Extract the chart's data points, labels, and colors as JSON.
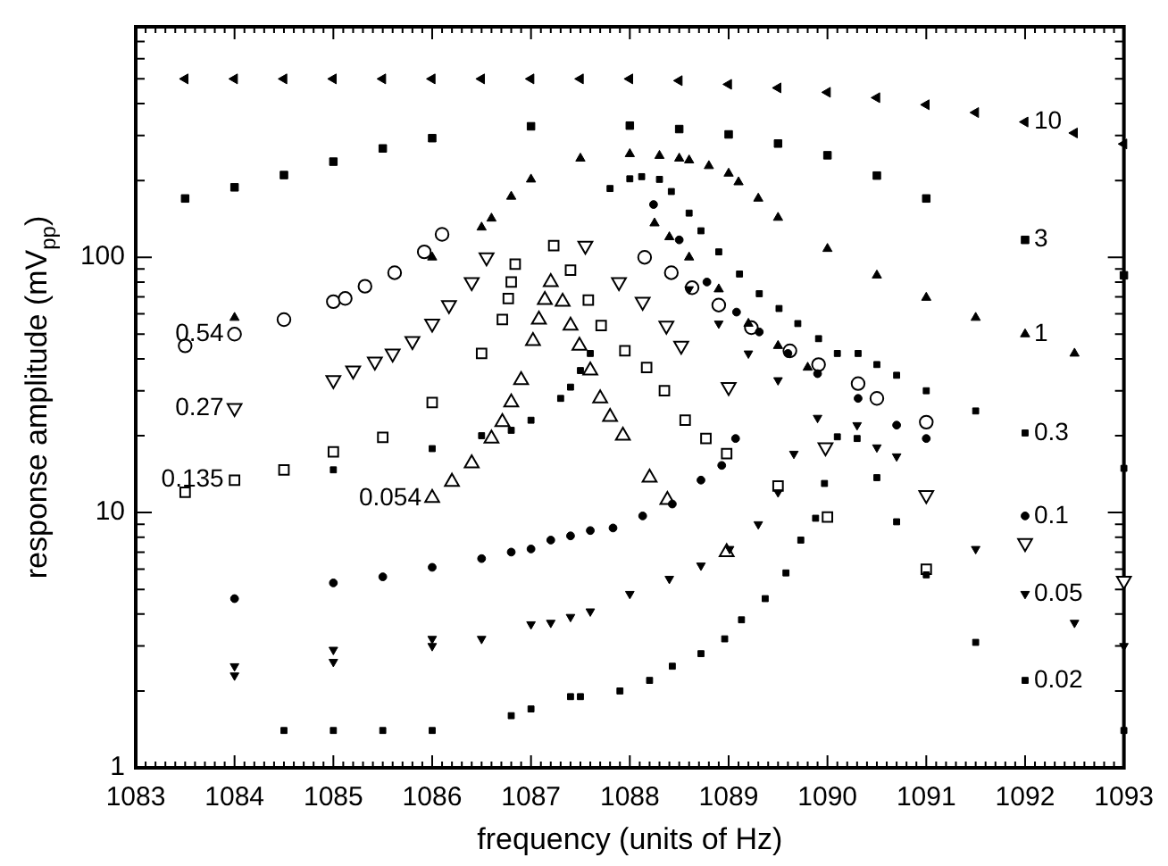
{
  "chart_data": {
    "type": "scatter",
    "xlabel": "frequency (units of Hz)",
    "ylabel": "response amplitude (mV$_{pp}$)",
    "log": "y",
    "xlim": [
      1083,
      1093
    ],
    "xticks": [
      1083,
      {
        "value": 1083.1,
        "label": null
      },
      {
        "value": 1083.2,
        "label": null
      },
      {
        "value": 1083.3,
        "label": null
      },
      {
        "value": 1083.4,
        "label": null
      },
      {
        "value": 1083.5,
        "label": null
      },
      {
        "value": 1083.6,
        "label": null
      },
      {
        "value": 1083.7,
        "label": null
      },
      {
        "value": 1083.8,
        "label": null
      },
      {
        "value": 1083.9,
        "label": null
      },
      1084,
      {
        "value": 1084.1,
        "label": null
      },
      {
        "value": 1084.2,
        "label": null
      },
      {
        "value": 1084.3,
        "label": null
      },
      {
        "value": 1084.4,
        "label": null
      },
      {
        "value": 1084.5,
        "label": null
      },
      {
        "value": 1084.6,
        "label": null
      },
      {
        "value": 1084.7,
        "label": null
      },
      {
        "value": 1084.8,
        "label": null
      },
      {
        "value": 1084.9,
        "label": null
      },
      1085,
      {
        "value": 1085.1,
        "label": null
      },
      {
        "value": 1085.2,
        "label": null
      },
      {
        "value": 1085.3,
        "label": null
      },
      {
        "value": 1085.4,
        "label": null
      },
      {
        "value": 1085.5,
        "label": null
      },
      {
        "value": 1085.6,
        "label": null
      },
      {
        "value": 1085.7,
        "label": null
      },
      {
        "value": 1085.8,
        "label": null
      },
      {
        "value": 1085.9,
        "label": null
      },
      1086,
      {
        "value": 1086.1,
        "label": null
      },
      {
        "value": 1086.2,
        "label": null
      },
      {
        "value": 1086.3,
        "label": null
      },
      {
        "value": 1086.4,
        "label": null
      },
      {
        "value": 1086.5,
        "label": null
      },
      {
        "value": 1086.6,
        "label": null
      },
      {
        "value": 1086.7,
        "label": null
      },
      {
        "value": 1086.8,
        "label": null
      },
      {
        "value": 1086.9,
        "label": null
      },
      1087,
      {
        "value": 1087.1,
        "label": null
      },
      {
        "value": 1087.2,
        "label": null
      },
      {
        "value": 1087.3,
        "label": null
      },
      {
        "value": 1087.4,
        "label": null
      },
      {
        "value": 1087.5,
        "label": null
      },
      {
        "value": 1087.6,
        "label": null
      },
      {
        "value": 1087.7,
        "label": null
      },
      {
        "value": 1087.8,
        "label": null
      },
      {
        "value": 1087.9,
        "label": null
      },
      1088,
      {
        "value": 1088.1,
        "label": null
      },
      {
        "value": 1088.2,
        "label": null
      },
      {
        "value": 1088.3,
        "label": null
      },
      {
        "value": 1088.4,
        "label": null
      },
      {
        "value": 1088.5,
        "label": null
      },
      {
        "value": 1088.6,
        "label": null
      },
      {
        "value": 1088.7,
        "label": null
      },
      {
        "value": 1088.8,
        "label": null
      },
      {
        "value": 1088.9,
        "label": null
      },
      1089,
      {
        "value": 1089.1,
        "label": null
      },
      {
        "value": 1089.2,
        "label": null
      },
      {
        "value": 1089.3,
        "label": null
      },
      {
        "value": 1089.4,
        "label": null
      },
      {
        "value": 1089.5,
        "label": null
      },
      {
        "value": 1089.6,
        "label": null
      },
      {
        "value": 1089.7,
        "label": null
      },
      {
        "value": 1089.8,
        "label": null
      },
      {
        "value": 1089.9,
        "label": null
      },
      1090,
      {
        "value": 1090.1,
        "label": null
      },
      {
        "value": 1090.2,
        "label": null
      },
      {
        "value": 1090.3,
        "label": null
      },
      {
        "value": 1090.4,
        "label": null
      },
      {
        "value": 1090.5,
        "label": null
      },
      {
        "value": 1090.6,
        "label": null
      },
      {
        "value": 1090.7,
        "label": null
      },
      {
        "value": 1090.8,
        "label": null
      },
      {
        "value": 1090.9,
        "label": null
      },
      1091,
      {
        "value": 1091.1,
        "label": null
      },
      {
        "value": 1091.2,
        "label": null
      },
      {
        "value": 1091.3,
        "label": null
      },
      {
        "value": 1091.4,
        "label": null
      },
      {
        "value": 1091.5,
        "label": null
      },
      {
        "value": 1091.6,
        "label": null
      },
      {
        "value": 1091.7,
        "label": null
      },
      {
        "value": 1091.8,
        "label": null
      },
      {
        "value": 1091.9,
        "label": null
      },
      1092,
      {
        "value": 1092.1,
        "label": null
      },
      {
        "value": 1092.2,
        "label": null
      },
      {
        "value": 1092.3,
        "label": null
      },
      {
        "value": 1092.4,
        "label": null
      },
      {
        "value": 1092.5,
        "label": null
      },
      {
        "value": 1092.6,
        "label": null
      },
      {
        "value": 1092.7,
        "label": null
      },
      {
        "value": 1092.8,
        "label": null
      },
      {
        "value": 1092.9,
        "label": null
      },
      1093
    ],
    "ylim": [
      1,
      800
    ],
    "yticks": [
      1,
      {
        "value": 2,
        "label": null
      },
      {
        "value": 3,
        "label": null
      },
      {
        "value": 4,
        "label": null
      },
      {
        "value": 5,
        "label": null
      },
      {
        "value": 6,
        "label": null
      },
      {
        "value": 7,
        "label": null
      },
      {
        "value": 8,
        "label": null
      },
      {
        "value": 9,
        "label": null
      },
      10,
      {
        "value": 20,
        "label": null
      },
      {
        "value": 30,
        "label": null
      },
      {
        "value": 40,
        "label": null
      },
      {
        "value": 50,
        "label": null
      },
      {
        "value": 60,
        "label": null
      },
      {
        "value": 70,
        "label": null
      },
      {
        "value": 80,
        "label": null
      },
      {
        "value": 90,
        "label": null
      },
      100,
      {
        "value": 200,
        "label": null
      },
      {
        "value": 300,
        "label": null
      },
      {
        "value": 400,
        "label": null
      },
      {
        "value": 500,
        "label": null
      },
      {
        "value": 600,
        "label": null
      },
      {
        "value": 700,
        "label": null
      },
      {
        "value": 800,
        "label": null
      }
    ],
    "series": [
      {
        "color": "#000000",
        "marker": "triangle-left",
        "x": [
          1083.5,
          1084,
          1084.5,
          1085,
          1085.5,
          1086,
          1086.5,
          1087,
          1087.5,
          1088,
          1088.5,
          1089,
          1089.5,
          1090,
          1090.5,
          1091,
          1091.5,
          1092,
          1092.5,
          1093
        ],
        "values": [
          500,
          500,
          500,
          500,
          500,
          500,
          500,
          500,
          500,
          500,
          492,
          476,
          461,
          443,
          422,
          396,
          369,
          339,
          307,
          278
        ]
      },
      {
        "color": "#000000",
        "marker": "square",
        "x": [
          1083.5,
          1084,
          1084.5,
          1085,
          1085.5,
          1086,
          1087,
          1088,
          1088.5,
          1089,
          1089.5,
          1090,
          1090.5,
          1091,
          1092,
          1093
        ],
        "values": [
          170,
          188,
          210,
          237,
          267,
          293,
          326,
          328,
          318,
          303,
          279,
          251,
          209,
          170,
          117,
          85
        ]
      },
      {
        "color": "#000000",
        "marker": "triangle",
        "x": [
          1084,
          1086,
          1086.5,
          1086.6,
          1086.8,
          1087,
          1087.5,
          1088,
          1088.3,
          1088.5,
          1088.6,
          1088.8,
          1089,
          1089.1,
          1089.3,
          1089.5,
          1090,
          1090.5,
          1091,
          1091.5,
          1092,
          1092.5,
          1088.25,
          1088.4,
          1088.6,
          1088.9,
          1089.2,
          1089.5,
          1089.8
        ],
        "values": [
          58,
          100,
          131,
          142,
          173,
          202,
          244,
          254,
          250,
          244,
          240,
          228,
          213,
          197,
          170,
          143,
          108,
          85,
          69.5,
          58,
          50,
          42,
          136,
          120,
          100,
          75,
          55,
          45,
          37
        ]
      },
      {
        "color": "#000000",
        "marker": "square-small",
        "x": [
          1085,
          1086,
          1086.5,
          1086.8,
          1087,
          1087.3,
          1087.4,
          1087.5,
          1087.6,
          1087.8,
          1088,
          1088.12,
          1088.3,
          1088.42,
          1088.6,
          1088.72,
          1088.9,
          1089.11,
          1089.31,
          1089.51,
          1089.7,
          1089.91,
          1090.1,
          1090.31,
          1090.5,
          1090.7,
          1091,
          1091.5,
          1092,
          1093
        ],
        "values": [
          14.7,
          17.8,
          20,
          21,
          23,
          28,
          31,
          36,
          42,
          186,
          203,
          207,
          202,
          181,
          149,
          127,
          105,
          86,
          72,
          63,
          55,
          48,
          42,
          42,
          38,
          34.5,
          30,
          25,
          20.5,
          14.9
        ]
      },
      {
        "color": "#000000",
        "marker": "circle",
        "x": [
          1084,
          1085,
          1085.5,
          1086,
          1086.5,
          1086.8,
          1087,
          1087.2,
          1087.4,
          1087.6,
          1087.83,
          1088.13,
          1088.43,
          1088.72,
          1088.93,
          1089.07,
          1088.24,
          1088.5,
          1088.78,
          1089.08,
          1089.31,
          1089.6,
          1089.9,
          1090.31,
          1090.7,
          1091,
          1092
        ],
        "values": [
          4.6,
          5.3,
          5.6,
          6.1,
          6.6,
          7.0,
          7.2,
          7.8,
          8.1,
          8.5,
          8.7,
          9.7,
          10.8,
          13.4,
          15.3,
          19.5,
          161,
          117,
          80,
          61,
          51,
          42,
          35,
          28,
          22,
          19.5,
          9.7
        ]
      },
      {
        "color": "#000000",
        "marker": "triangle-down",
        "x": [
          1084,
          1084,
          1085,
          1085,
          1086,
          1086,
          1086.5,
          1087,
          1087.2,
          1087.4,
          1087.6,
          1088,
          1088.4,
          1088.72,
          1089.01,
          1089.3,
          1089.5,
          1089.66,
          1088.6,
          1088.9,
          1089.2,
          1089.5,
          1089.9,
          1090.3,
          1090.5,
          1090.7,
          1091.5,
          1092,
          1092.5,
          1093
        ],
        "values": [
          2.5,
          2.3,
          2.9,
          2.6,
          3.2,
          3.0,
          3.2,
          3.65,
          3.7,
          3.9,
          4.1,
          4.8,
          5.5,
          6.2,
          7.2,
          9.0,
          12.0,
          17,
          75,
          55,
          42,
          33,
          23.5,
          22,
          18,
          16.6,
          7.2,
          4.8,
          3.7,
          3.0
        ]
      },
      {
        "color": "#000000",
        "marker": "square-small",
        "x": [
          1084.5,
          1085,
          1085.5,
          1086,
          1086.8,
          1087,
          1087.4,
          1087.5,
          1087.9,
          1088.2,
          1088.43,
          1088.72,
          1088.96,
          1089.13,
          1089.37,
          1089.58,
          1089.73,
          1089.88,
          1089.97,
          1090.1,
          1090.3,
          1090.5,
          1090.7,
          1091,
          1091.5,
          1092,
          1093
        ],
        "values": [
          1.4,
          1.4,
          1.4,
          1.4,
          1.6,
          1.7,
          1.9,
          1.9,
          2.0,
          2.2,
          2.5,
          2.8,
          3.2,
          3.8,
          4.6,
          5.8,
          7.8,
          9.5,
          13,
          19.8,
          19.5,
          13.7,
          9.2,
          5.7,
          3.1,
          2.2,
          1.4
        ]
      },
      {
        "color": "#000000",
        "marker": "circle-open",
        "x": [
          1083.5,
          1084,
          1084.5,
          1085,
          1085.12,
          1085.32,
          1085.62,
          1085.92,
          1086.1,
          1088.15,
          1088.42,
          1088.63,
          1088.9,
          1089.23,
          1089.62,
          1089.91,
          1090.31,
          1090.5,
          1091
        ],
        "values": [
          45,
          50,
          57,
          67,
          69,
          77,
          87,
          105,
          123,
          100,
          87,
          76,
          65,
          53,
          43,
          38,
          32,
          28,
          22.6
        ]
      },
      {
        "color": "#000000",
        "marker": "triangle-down-open",
        "x": [
          1084,
          1085,
          1085.2,
          1085.42,
          1085.6,
          1085.8,
          1086,
          1086.17,
          1086.4,
          1086.55,
          1087.55,
          1087.89,
          1088.13,
          1088.37,
          1088.52,
          1089,
          1089.98,
          1091,
          1092,
          1093
        ],
        "values": [
          25.7,
          33,
          36,
          39,
          42,
          47,
          55,
          65,
          80,
          100,
          111,
          80,
          67,
          54,
          45,
          31,
          18,
          11.7,
          7.6,
          5.4
        ]
      },
      {
        "color": "#000000",
        "marker": "square-open",
        "x": [
          1083.5,
          1084,
          1084.5,
          1085,
          1085.5,
          1086,
          1086.5,
          1086.71,
          1086.77,
          1086.8,
          1086.84,
          1087.23,
          1087.4,
          1087.58,
          1087.71,
          1087.95,
          1088.17,
          1088.35,
          1088.56,
          1088.77,
          1088.98,
          1089.5,
          1090,
          1091
        ],
        "values": [
          12,
          13.4,
          14.7,
          17.3,
          19.7,
          27,
          42,
          57,
          69,
          80,
          94,
          111,
          89,
          68,
          54,
          43,
          37,
          30,
          23,
          19.5,
          17,
          12.7,
          9.6,
          6.0
        ]
      },
      {
        "color": "#000000",
        "marker": "triangle-open",
        "x": [
          1086,
          1086.2,
          1086.4,
          1086.6,
          1086.71,
          1086.8,
          1086.9,
          1087.02,
          1087.08,
          1087.14,
          1087.2,
          1087.32,
          1087.4,
          1087.49,
          1087.6,
          1087.7,
          1087.8,
          1087.93,
          1088.2,
          1088.38,
          1088.98
        ],
        "values": [
          11.4,
          13.2,
          15.6,
          19.5,
          22.6,
          27,
          33,
          47,
          57,
          68,
          80,
          67,
          54,
          45,
          36,
          28,
          23.7,
          20,
          13.7,
          11.2,
          7.0
        ]
      }
    ],
    "annotations": [
      {
        "text": "10",
        "x": 1092,
        "y": 339
      },
      {
        "text": "3",
        "x": 1092,
        "y": 117
      },
      {
        "text": "1",
        "x": 1092,
        "y": 50
      },
      {
        "text": "0.3",
        "x": 1092,
        "y": 20.5
      },
      {
        "text": "0.1",
        "x": 1092,
        "y": 9.7
      },
      {
        "text": "0.05",
        "x": 1092,
        "y": 4.8
      },
      {
        "text": "0.02",
        "x": 1092,
        "y": 2.2
      },
      {
        "text": "0.54",
        "x": 1084,
        "y": 50
      },
      {
        "text": "0.27",
        "x": 1084,
        "y": 25.7
      },
      {
        "text": "0.135",
        "x": 1084,
        "y": 13.4
      },
      {
        "text": "0.054",
        "x": 1086,
        "y": 11.4
      }
    ]
  }
}
